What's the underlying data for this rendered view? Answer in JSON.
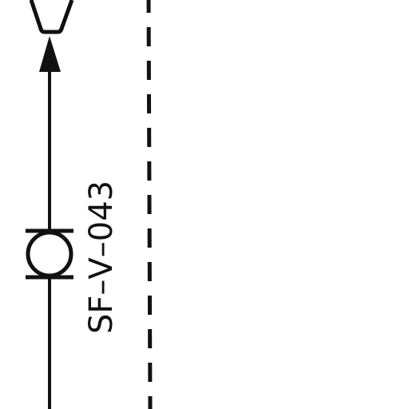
{
  "diagram": {
    "valve_tag": "SF–V–043",
    "colors": {
      "line": "#111111",
      "background": "#ffffff"
    },
    "symbols": [
      "reducer-icon",
      "flow-arrow-icon",
      "valve-icon",
      "boundary-dashed-line"
    ]
  }
}
